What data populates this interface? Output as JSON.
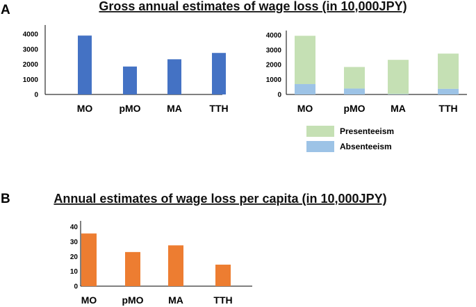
{
  "panels": {
    "a": {
      "letter": "A",
      "title": "Gross annual estimates of wage loss  (in 10,000JPY)"
    },
    "b": {
      "letter": "B",
      "title": "Annual estimates of wage loss per capita (in 10,000JPY)"
    }
  },
  "chart_data": [
    {
      "id": "gross-total",
      "type": "bar",
      "title": "Gross annual estimates of wage loss  (in 10,000JPY)",
      "categories": [
        "MO",
        "pMO",
        "MA",
        "TTH"
      ],
      "values": [
        3900,
        1850,
        2330,
        2750
      ],
      "yticks": [
        "0",
        "1000",
        "2000",
        "3000",
        "4000"
      ],
      "ylim": [
        0,
        4600
      ],
      "color": "#4472C4"
    },
    {
      "id": "gross-stacked",
      "type": "bar",
      "stacked": true,
      "categories": [
        "MO",
        "pMO",
        "MA",
        "TTH"
      ],
      "series": [
        {
          "name": "Absenteeism",
          "values": [
            700,
            400,
            30,
            380
          ],
          "color": "#9DC3E6"
        },
        {
          "name": "Presenteeism",
          "values": [
            3250,
            1450,
            2300,
            2370
          ],
          "color": "#C5E0B4"
        }
      ],
      "yticks": [
        "0",
        "1000",
        "2000",
        "3000",
        "4000"
      ],
      "ylim": [
        0,
        4300
      ],
      "legend": [
        "Presenteeism",
        "Absenteeism"
      ],
      "legend_position": "bottom"
    },
    {
      "id": "per-capita",
      "type": "bar",
      "title": "Annual estimates of wage loss per capita (in 10,000JPY)",
      "categories": [
        "MO",
        "pMO",
        "MA",
        "TTH"
      ],
      "values": [
        35.5,
        23,
        27.5,
        14.5
      ],
      "yticks": [
        "0",
        "10",
        "20",
        "30",
        "40"
      ],
      "ylim": [
        0,
        44
      ],
      "color": "#ED7D31"
    }
  ]
}
